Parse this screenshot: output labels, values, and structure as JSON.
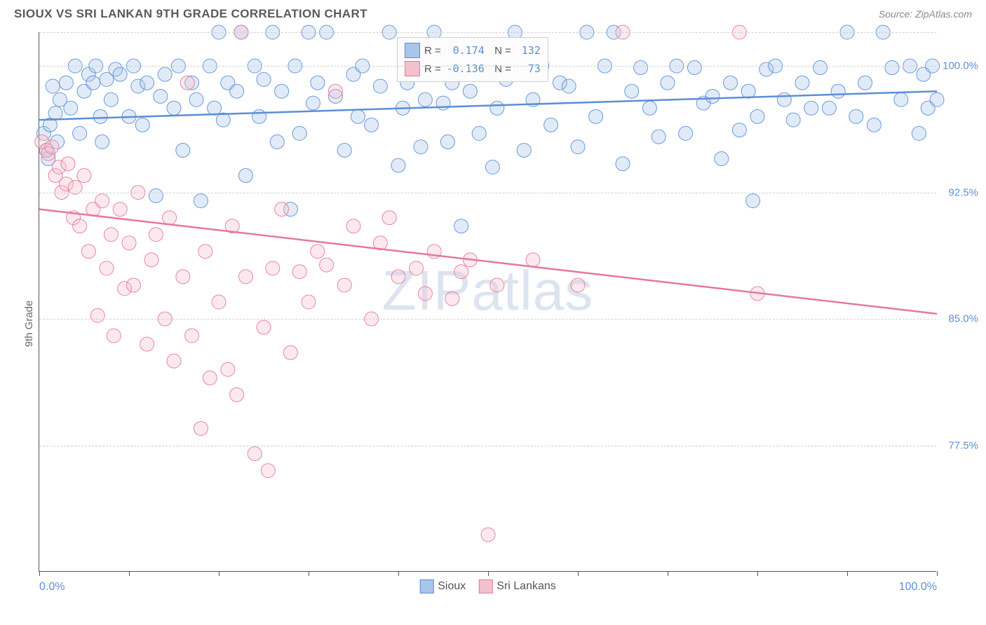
{
  "title": "SIOUX VS SRI LANKAN 9TH GRADE CORRELATION CHART",
  "source": "Source: ZipAtlas.com",
  "y_axis_label": "9th Grade",
  "watermark": "ZIPatlas",
  "chart": {
    "type": "scatter",
    "xlim": [
      0,
      100
    ],
    "ylim": [
      70,
      102
    ],
    "y_gridlines": [
      77.5,
      85.0,
      92.5,
      100.0,
      102.0
    ],
    "y_tick_labels": [
      "77.5%",
      "85.0%",
      "92.5%",
      "100.0%"
    ],
    "y_tick_values": [
      77.5,
      85.0,
      92.5,
      100.0
    ],
    "x_ticks": [
      0,
      10,
      20,
      30,
      40,
      50,
      60,
      70,
      80,
      90,
      100
    ],
    "x_tick_labels": {
      "0": "0.0%",
      "100": "100.0%"
    },
    "grid_color": "#d0d0d0",
    "axis_color": "#555555",
    "background_color": "#ffffff",
    "label_color": "#5b8fd6",
    "marker_radius": 10,
    "marker_opacity": 0.35,
    "marker_stroke_opacity": 0.9,
    "line_width": 2.5
  },
  "series": [
    {
      "name": "Sioux",
      "color_fill": "#a8c5eb",
      "color_stroke": "#5b8fd6",
      "R": "0.174",
      "N": "132",
      "trend": {
        "y_at_x0": 96.8,
        "y_at_x100": 98.5
      },
      "points": [
        [
          0.5,
          96.0
        ],
        [
          0.8,
          95.0
        ],
        [
          1.0,
          94.5
        ],
        [
          1.2,
          96.5
        ],
        [
          1.5,
          98.8
        ],
        [
          1.8,
          97.2
        ],
        [
          2.0,
          95.5
        ],
        [
          2.3,
          98.0
        ],
        [
          3.0,
          99.0
        ],
        [
          3.5,
          97.5
        ],
        [
          4.0,
          100.0
        ],
        [
          4.5,
          96.0
        ],
        [
          5.0,
          98.5
        ],
        [
          5.5,
          99.5
        ],
        [
          6.0,
          99.0
        ],
        [
          6.3,
          100.0
        ],
        [
          6.8,
          97.0
        ],
        [
          7.0,
          95.5
        ],
        [
          7.5,
          99.2
        ],
        [
          8.0,
          98.0
        ],
        [
          8.5,
          99.8
        ],
        [
          9.0,
          99.5
        ],
        [
          10.0,
          97.0
        ],
        [
          10.5,
          100.0
        ],
        [
          11.0,
          98.8
        ],
        [
          11.5,
          96.5
        ],
        [
          12.0,
          99.0
        ],
        [
          13.0,
          92.3
        ],
        [
          13.5,
          98.2
        ],
        [
          14.0,
          99.5
        ],
        [
          15.0,
          97.5
        ],
        [
          15.5,
          100.0
        ],
        [
          16.0,
          95.0
        ],
        [
          17.0,
          99.0
        ],
        [
          17.5,
          98.0
        ],
        [
          18.0,
          92.0
        ],
        [
          19.0,
          100.0
        ],
        [
          19.5,
          97.5
        ],
        [
          20.0,
          102.0
        ],
        [
          20.5,
          96.8
        ],
        [
          21.0,
          99.0
        ],
        [
          22.0,
          98.5
        ],
        [
          22.5,
          102.0
        ],
        [
          23.0,
          93.5
        ],
        [
          24.0,
          100.0
        ],
        [
          24.5,
          97.0
        ],
        [
          25.0,
          99.2
        ],
        [
          26.0,
          102.0
        ],
        [
          26.5,
          95.5
        ],
        [
          27.0,
          98.5
        ],
        [
          28.0,
          91.5
        ],
        [
          28.5,
          100.0
        ],
        [
          29.0,
          96.0
        ],
        [
          30.0,
          102.0
        ],
        [
          30.5,
          97.8
        ],
        [
          31.0,
          99.0
        ],
        [
          32.0,
          102.0
        ],
        [
          33.0,
          98.2
        ],
        [
          34.0,
          95.0
        ],
        [
          35.0,
          99.5
        ],
        [
          35.5,
          97.0
        ],
        [
          36.0,
          100.0
        ],
        [
          37.0,
          96.5
        ],
        [
          38.0,
          98.8
        ],
        [
          39.0,
          102.0
        ],
        [
          40.0,
          94.1
        ],
        [
          40.5,
          97.5
        ],
        [
          41.0,
          99.0
        ],
        [
          42.0,
          100.0
        ],
        [
          42.5,
          95.2
        ],
        [
          43.0,
          98.0
        ],
        [
          44.0,
          102.0
        ],
        [
          45.0,
          97.8
        ],
        [
          45.5,
          95.5
        ],
        [
          46.0,
          99.0
        ],
        [
          47.0,
          90.5
        ],
        [
          48.0,
          98.5
        ],
        [
          49.0,
          96.0
        ],
        [
          50.0,
          100.0
        ],
        [
          50.5,
          94.0
        ],
        [
          51.0,
          97.5
        ],
        [
          52.0,
          99.2
        ],
        [
          53.0,
          102.0
        ],
        [
          54.0,
          95.0
        ],
        [
          55.0,
          98.0
        ],
        [
          56.0,
          100.0
        ],
        [
          57.0,
          96.5
        ],
        [
          58.0,
          99.0
        ],
        [
          59.0,
          98.8
        ],
        [
          60.0,
          95.2
        ],
        [
          61.0,
          102.0
        ],
        [
          62.0,
          97.0
        ],
        [
          63.0,
          100.0
        ],
        [
          64.0,
          102.0
        ],
        [
          65.0,
          94.2
        ],
        [
          66.0,
          98.5
        ],
        [
          67.0,
          99.9
        ],
        [
          68.0,
          97.5
        ],
        [
          69.0,
          95.8
        ],
        [
          70.0,
          99.0
        ],
        [
          71.0,
          100.0
        ],
        [
          72.0,
          96.0
        ],
        [
          73.0,
          99.9
        ],
        [
          74.0,
          97.8
        ],
        [
          75.0,
          98.2
        ],
        [
          76.0,
          94.5
        ],
        [
          77.0,
          99.0
        ],
        [
          78.0,
          96.2
        ],
        [
          79.0,
          98.5
        ],
        [
          79.5,
          92.0
        ],
        [
          80.0,
          97.0
        ],
        [
          81.0,
          99.8
        ],
        [
          82.0,
          100.0
        ],
        [
          83.0,
          98.0
        ],
        [
          84.0,
          96.8
        ],
        [
          85.0,
          99.0
        ],
        [
          86.0,
          97.5
        ],
        [
          87.0,
          99.9
        ],
        [
          88.0,
          97.5
        ],
        [
          89.0,
          98.5
        ],
        [
          90.0,
          102.0
        ],
        [
          91.0,
          97.0
        ],
        [
          92.0,
          99.0
        ],
        [
          93.0,
          96.5
        ],
        [
          94.0,
          102.0
        ],
        [
          95.0,
          99.9
        ],
        [
          96.0,
          98.0
        ],
        [
          97.0,
          100.0
        ],
        [
          98.0,
          96.0
        ],
        [
          98.5,
          99.5
        ],
        [
          99.0,
          97.5
        ],
        [
          99.5,
          100.0
        ],
        [
          100.0,
          98.0
        ]
      ]
    },
    {
      "name": "Sri Lankans",
      "color_fill": "#f4c0cd",
      "color_stroke": "#e6799a",
      "R": "-0.136",
      "N": "73",
      "trend": {
        "y_at_x0": 91.5,
        "y_at_x100": 85.3
      },
      "points": [
        [
          0.3,
          95.5
        ],
        [
          0.8,
          95.0
        ],
        [
          1.0,
          94.8
        ],
        [
          1.4,
          95.2
        ],
        [
          1.8,
          93.5
        ],
        [
          2.2,
          94.0
        ],
        [
          2.5,
          92.5
        ],
        [
          3.0,
          93.0
        ],
        [
          3.2,
          94.2
        ],
        [
          3.8,
          91.0
        ],
        [
          4.0,
          92.8
        ],
        [
          4.5,
          90.5
        ],
        [
          5.0,
          93.5
        ],
        [
          5.5,
          89.0
        ],
        [
          6.0,
          91.5
        ],
        [
          6.5,
          85.2
        ],
        [
          7.0,
          92.0
        ],
        [
          7.5,
          88.0
        ],
        [
          8.0,
          90.0
        ],
        [
          8.3,
          84.0
        ],
        [
          9.0,
          91.5
        ],
        [
          9.5,
          86.8
        ],
        [
          10.0,
          89.5
        ],
        [
          10.5,
          87.0
        ],
        [
          11.0,
          92.5
        ],
        [
          12.0,
          83.5
        ],
        [
          12.5,
          88.5
        ],
        [
          13.0,
          90.0
        ],
        [
          14.0,
          85.0
        ],
        [
          14.5,
          91.0
        ],
        [
          15.0,
          82.5
        ],
        [
          16.0,
          87.5
        ],
        [
          16.5,
          99.0
        ],
        [
          17.0,
          84.0
        ],
        [
          18.0,
          78.5
        ],
        [
          18.5,
          89.0
        ],
        [
          19.0,
          81.5
        ],
        [
          20.0,
          86.0
        ],
        [
          21.0,
          82.0
        ],
        [
          21.5,
          90.5
        ],
        [
          22.0,
          80.5
        ],
        [
          22.5,
          102.0
        ],
        [
          23.0,
          87.5
        ],
        [
          24.0,
          77.0
        ],
        [
          25.0,
          84.5
        ],
        [
          25.5,
          76.0
        ],
        [
          26.0,
          88.0
        ],
        [
          27.0,
          91.5
        ],
        [
          28.0,
          83.0
        ],
        [
          29.0,
          87.8
        ],
        [
          30.0,
          86.0
        ],
        [
          31.0,
          89.0
        ],
        [
          32.0,
          88.2
        ],
        [
          33.0,
          98.5
        ],
        [
          34.0,
          87.0
        ],
        [
          35.0,
          90.5
        ],
        [
          37.0,
          85.0
        ],
        [
          38.0,
          89.5
        ],
        [
          39.0,
          91.0
        ],
        [
          40.0,
          87.5
        ],
        [
          42.0,
          88.0
        ],
        [
          43.0,
          86.5
        ],
        [
          44.0,
          89.0
        ],
        [
          46.0,
          86.2
        ],
        [
          47.0,
          87.8
        ],
        [
          48.0,
          88.5
        ],
        [
          50.0,
          72.2
        ],
        [
          51.0,
          87.0
        ],
        [
          55.0,
          88.5
        ],
        [
          60.0,
          87.0
        ],
        [
          65.0,
          102.0
        ],
        [
          78.0,
          102.0
        ],
        [
          80.0,
          86.5
        ]
      ]
    }
  ],
  "bottom_legend": [
    {
      "label": "Sioux",
      "fill": "#a8c5eb",
      "stroke": "#5b8fd6"
    },
    {
      "label": "Sri Lankans",
      "fill": "#f4c0cd",
      "stroke": "#e6799a"
    }
  ]
}
